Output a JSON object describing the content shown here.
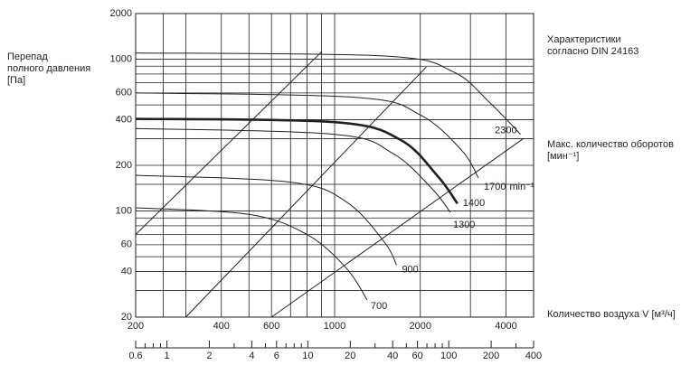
{
  "chart_data": {
    "type": "line",
    "title": "",
    "ylabel": [
      "Перепад",
      "полного давления",
      "[Па]"
    ],
    "xlabel": "Количество воздуха V [м³/ч]",
    "y_scale": "log",
    "x_scale": "log",
    "ylim": [
      20,
      2000
    ],
    "xlim": [
      200,
      5000
    ],
    "y_ticks": [
      20,
      40,
      60,
      100,
      200,
      400,
      600,
      1000,
      2000
    ],
    "x_ticks": [
      200,
      400,
      600,
      1000,
      2000,
      4000
    ],
    "secondary_x_axis": {
      "labels": [
        "0.6",
        "1",
        "2",
        "4",
        "6",
        "10",
        "20",
        "40",
        "60",
        "100",
        "200",
        "400"
      ],
      "values": [
        0.6,
        1,
        2,
        4,
        6,
        10,
        20,
        40,
        60,
        100,
        200,
        400
      ],
      "minor_values": [
        0.7,
        0.8,
        0.9,
        3,
        5,
        7,
        8,
        9,
        30,
        50,
        70,
        80,
        90,
        300
      ]
    },
    "annotations": {
      "characteristics": [
        "Характеристики",
        "согласно DIN 24163"
      ],
      "max_speed": [
        "Макс. количество оборотов",
        "[мин⁻¹]"
      ],
      "label_1700_unit": "min⁻¹"
    },
    "series": [
      {
        "name": "700",
        "highlight": false,
        "x": [
          200,
          500,
          800,
          1100,
          1300
        ],
        "y": [
          105,
          95,
          70,
          42,
          26
        ]
      },
      {
        "name": "900",
        "highlight": false,
        "x": [
          200,
          700,
          1100,
          1500,
          1650
        ],
        "y": [
          172,
          155,
          115,
          62,
          44
        ]
      },
      {
        "name": "1300",
        "highlight": false,
        "x": [
          200,
          1000,
          1600,
          2200,
          2550
        ],
        "y": [
          350,
          320,
          240,
          140,
          98
        ]
      },
      {
        "name": "1400",
        "highlight": true,
        "x": [
          200,
          1000,
          1700,
          2300,
          2700
        ],
        "y": [
          405,
          385,
          295,
          170,
          112
        ]
      },
      {
        "name": "1700",
        "highlight": false,
        "x": [
          200,
          1200,
          2000,
          2800,
          3200
        ],
        "y": [
          600,
          560,
          430,
          250,
          165
        ]
      },
      {
        "name": "2300",
        "highlight": false,
        "x": [
          200,
          1500,
          2600,
          3500,
          4500
        ],
        "y": [
          1100,
          1050,
          830,
          520,
          320
        ]
      }
    ],
    "series_labels": {
      "700": "700",
      "900": "900",
      "1300": "1300",
      "1400": "1400",
      "1700": "1700",
      "2300": "2300"
    },
    "system_lines": [
      {
        "x": [
          200,
          900
        ],
        "y": [
          70,
          1120
        ]
      },
      {
        "x": [
          300,
          2100
        ],
        "y": [
          20,
          890
        ]
      },
      {
        "x": [
          600,
          4600
        ],
        "y": [
          20,
          300
        ]
      }
    ]
  }
}
